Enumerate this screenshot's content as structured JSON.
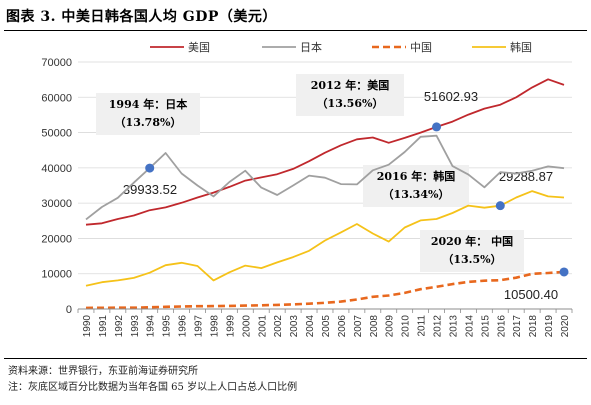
{
  "figure_title": "图表 3.  中美日韩各国人均 GDP（美元）",
  "source_text": "资料来源：世界银行，东亚前海证券研究所",
  "note_text": "注：灰底区域百分比数据为当年各国 65 岁以上人口占总人口比例",
  "chart_data": {
    "type": "line",
    "title": "",
    "xlabel": "",
    "ylabel": "",
    "ylim": [
      0,
      70000
    ],
    "yticks": [
      0,
      10000,
      20000,
      30000,
      40000,
      50000,
      60000,
      70000
    ],
    "ytick_labels": [
      "0",
      "10000",
      "20000",
      "30000",
      "40000",
      "50000",
      "60000",
      "70000"
    ],
    "x": [
      "1990",
      "1991",
      "1992",
      "1993",
      "1994",
      "1995",
      "1996",
      "1997",
      "1998",
      "1999",
      "2000",
      "2001",
      "2002",
      "2003",
      "2004",
      "2005",
      "2006",
      "2007",
      "2008",
      "2009",
      "2010",
      "2011",
      "2012",
      "2013",
      "2014",
      "2015",
      "2016",
      "2017",
      "2018",
      "2019",
      "2020"
    ],
    "grid": "horizontal",
    "legend_position": "top",
    "series": [
      {
        "name": "美国",
        "color": "#c0282d",
        "dash": "solid",
        "values": [
          23900,
          24300,
          25500,
          26500,
          28000,
          28800,
          30100,
          31600,
          33000,
          34600,
          36400,
          37300,
          38200,
          39700,
          41900,
          44300,
          46400,
          48100,
          48600,
          47100,
          48500,
          50000,
          51602.93,
          53100,
          55100,
          56800,
          57900,
          60000,
          62800,
          65100,
          63500
        ]
      },
      {
        "name": "日本",
        "color": "#a0a0a0",
        "dash": "solid",
        "values": [
          25400,
          28900,
          31500,
          35800,
          39933.52,
          44200,
          38400,
          35000,
          31900,
          36000,
          39200,
          34400,
          32300,
          35000,
          37800,
          37200,
          35400,
          35300,
          39300,
          40900,
          44500,
          48800,
          49100,
          40500,
          38100,
          34500,
          38800,
          38400,
          39200,
          40400,
          39900
        ]
      },
      {
        "name": "中国",
        "color": "#e8681e",
        "dash": "dashed",
        "values": [
          320,
          330,
          370,
          380,
          470,
          610,
          710,
          780,
          830,
          870,
          960,
          1050,
          1150,
          1290,
          1510,
          1750,
          2100,
          2700,
          3470,
          3830,
          4550,
          5620,
          6300,
          7050,
          7680,
          8030,
          8150,
          8880,
          9980,
          10200,
          10500.4
        ]
      },
      {
        "name": "韩国",
        "color": "#f5c219",
        "dash": "solid",
        "values": [
          6600,
          7600,
          8100,
          8800,
          10300,
          12400,
          13100,
          12200,
          8100,
          10400,
          12300,
          11600,
          13200,
          14700,
          16500,
          19400,
          21700,
          24100,
          21400,
          19100,
          23100,
          25100,
          25500,
          27200,
          29300,
          28700,
          29288.87,
          31600,
          33400,
          31900,
          31600
        ]
      }
    ],
    "annotations": [
      {
        "series": "日本",
        "x": "1994",
        "value_label": "39933.52",
        "box_lines": [
          "1994 年：日本",
          "（13.78%）"
        ]
      },
      {
        "series": "美国",
        "x": "2012",
        "value_label": "51602.93",
        "box_lines": [
          "2012 年：美国",
          "（13.56%）"
        ]
      },
      {
        "series": "韩国",
        "x": "2016",
        "value_label": "29288.87",
        "box_lines": [
          "2016 年：韩国",
          "（13.34%）"
        ]
      },
      {
        "series": "中国",
        "x": "2020",
        "value_label": "10500.40",
        "box_lines": [
          "2020 年： 中国",
          "（13.5%）"
        ]
      }
    ],
    "marker_color": "#4472c4"
  }
}
